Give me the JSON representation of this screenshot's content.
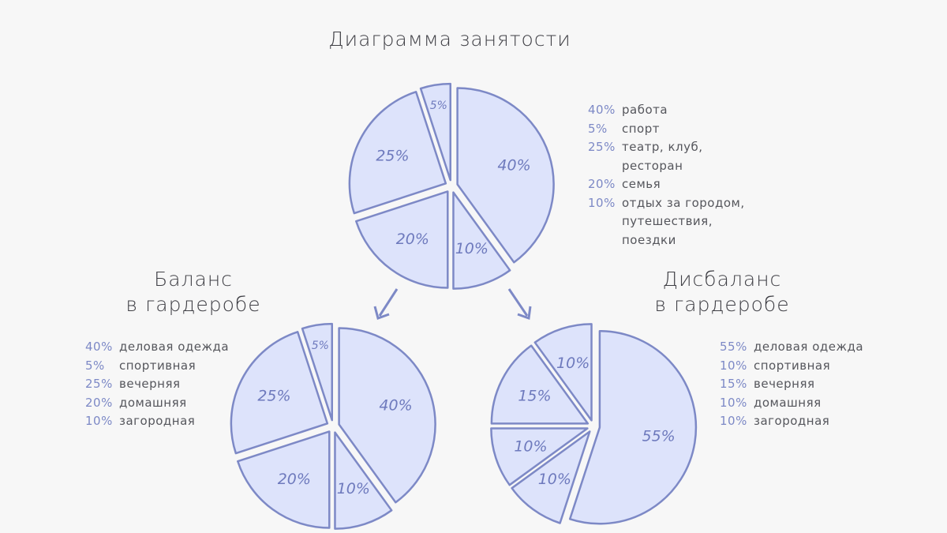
{
  "chart_data": [
    {
      "type": "pie",
      "title": "Диаграмма занятости",
      "categories": [
        "работа",
        "спорт",
        "театр, клуб, ресторан",
        "семья",
        "отдых за городом, путешествия, поездки"
      ],
      "values": [
        40,
        5,
        25,
        20,
        10
      ],
      "value_labels": [
        "40%",
        "5%",
        "25%",
        "20%",
        "10%"
      ],
      "color": "#dde3fb",
      "edge_color": "#7d89c6"
    },
    {
      "type": "pie",
      "title": "Баланс\nв гардеробе",
      "categories": [
        "деловая одежда",
        "спортивная",
        "вечерняя",
        "домашняя",
        "загородная"
      ],
      "values": [
        40,
        5,
        25,
        20,
        10
      ],
      "value_labels": [
        "40%",
        "5%",
        "25%",
        "20%",
        "10%"
      ],
      "color": "#dde3fb",
      "edge_color": "#7d89c6"
    },
    {
      "type": "pie",
      "title": "Дисбаланс\nв гардеробе",
      "categories": [
        "деловая одежда",
        "спортивная",
        "вечерняя",
        "домашняя",
        "загородная"
      ],
      "values": [
        55,
        10,
        15,
        10,
        10
      ],
      "value_labels": [
        "55%",
        "10%",
        "15%",
        "10%",
        "10%"
      ],
      "color": "#dde3fb",
      "edge_color": "#7d89c6"
    }
  ]
}
